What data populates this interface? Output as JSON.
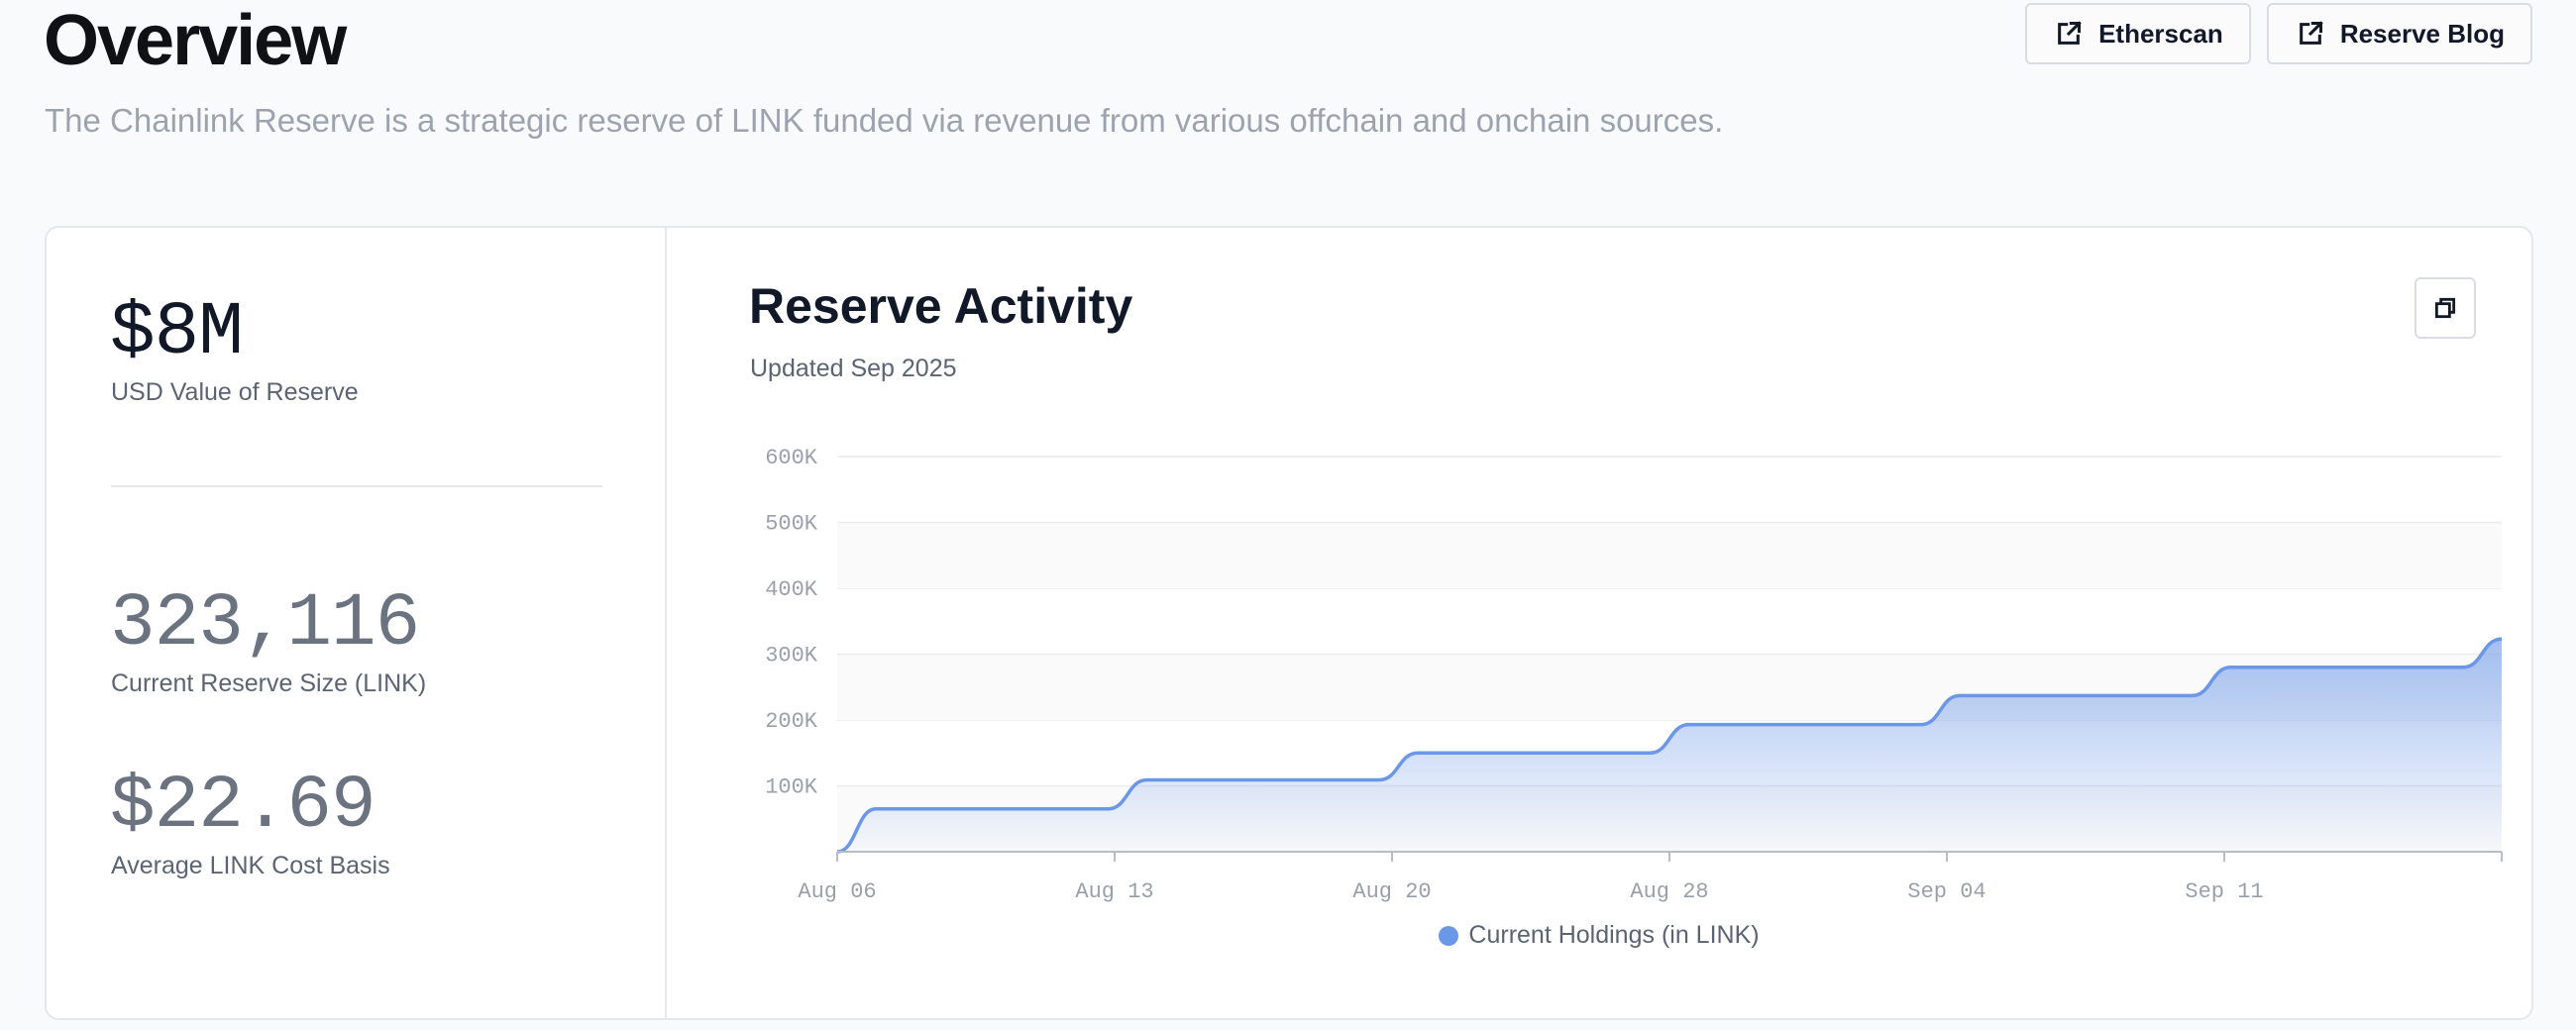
{
  "header": {
    "title": "Overview",
    "subtitle": "The Chainlink Reserve is a strategic reserve of LINK funded via revenue from various offchain and onchain sources."
  },
  "actions": [
    {
      "label": "Etherscan",
      "icon": "external-link-icon"
    },
    {
      "label": "Reserve Blog",
      "icon": "external-link-icon"
    }
  ],
  "stats": {
    "usd_value": "$8M",
    "usd_label": "USD Value of Reserve",
    "reserve_size": "323,116",
    "reserve_label": "Current Reserve Size (LINK)",
    "cost_basis": "$22.69",
    "cost_label": "Average LINK Cost Basis"
  },
  "chart": {
    "title": "Reserve Activity",
    "updated": "Updated Sep 2025",
    "copy_icon": "copy-icon",
    "series_color": "#6b97e8"
  },
  "chart_data": {
    "type": "area",
    "x_ticks": [
      "Aug 06",
      "Aug 13",
      "Aug 20",
      "Aug 28",
      "Sep 04",
      "Sep 11"
    ],
    "y_ticks": [
      "100K",
      "200K",
      "300K",
      "400K",
      "500K",
      "600K"
    ],
    "ylim": [
      0,
      600000
    ],
    "xlim": [
      "2025-08-06",
      "2025-09-18"
    ],
    "series": [
      {
        "name": "Current Holdings (in LINK)",
        "points": [
          [
            "2025-08-06",
            0
          ],
          [
            "2025-08-07",
            65000
          ],
          [
            "2025-08-13",
            65000
          ],
          [
            "2025-08-14",
            109000
          ],
          [
            "2025-08-20",
            109000
          ],
          [
            "2025-08-21",
            150000
          ],
          [
            "2025-08-27",
            150000
          ],
          [
            "2025-08-28",
            193000
          ],
          [
            "2025-09-03",
            193000
          ],
          [
            "2025-09-04",
            237000
          ],
          [
            "2025-09-10",
            237000
          ],
          [
            "2025-09-11",
            280000
          ],
          [
            "2025-09-17",
            280000
          ],
          [
            "2025-09-18",
            323116
          ]
        ]
      }
    ],
    "legend_position": "bottom",
    "grid": true
  }
}
